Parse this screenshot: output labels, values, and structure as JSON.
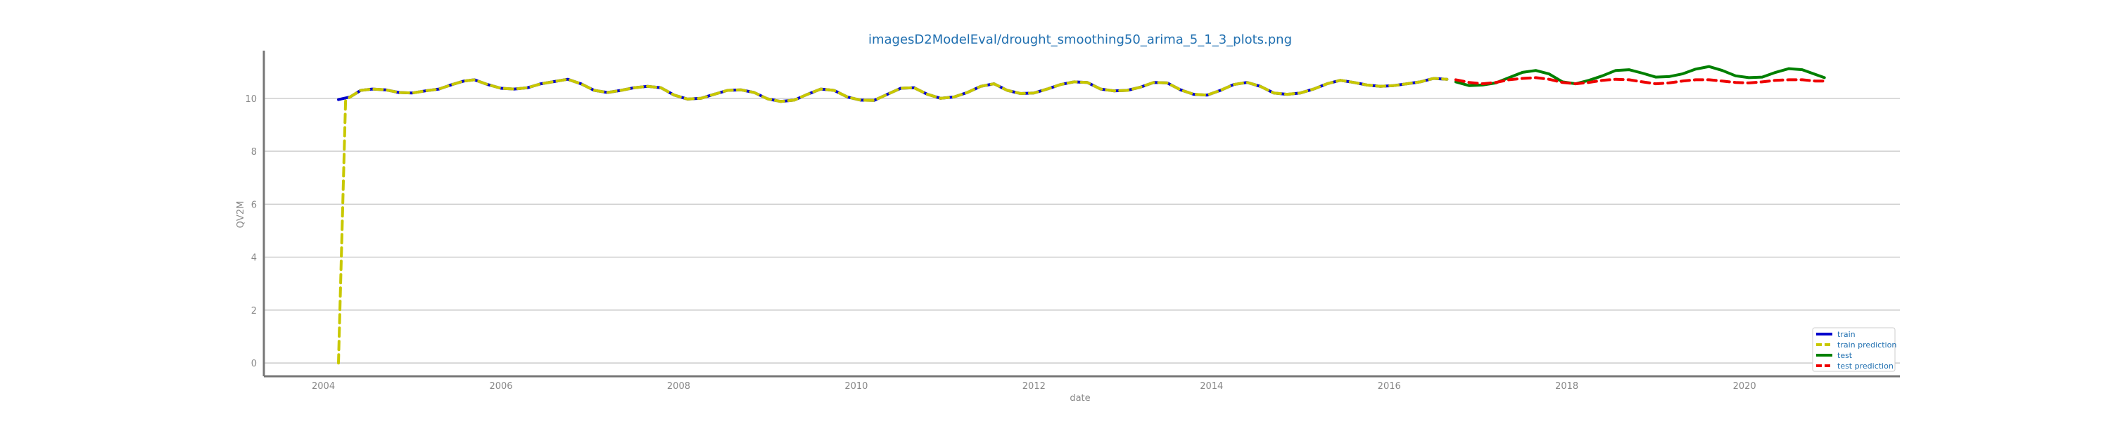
{
  "chart_data": {
    "type": "line",
    "title": "imagesD2ModelEval/drought_smoothing50_arima_5_1_3_plots.png",
    "xlabel": "date",
    "ylabel": "QV2M",
    "xlim": [
      2003.33,
      2021.75
    ],
    "ylim": [
      -0.5,
      11.8
    ],
    "x_ticks": [
      2004,
      2006,
      2008,
      2010,
      2012,
      2014,
      2016,
      2018,
      2020
    ],
    "y_ticks": [
      0,
      2,
      4,
      6,
      8,
      10
    ],
    "grid": "horizontal",
    "legend_position": "lower-right",
    "colors": {
      "train": "#0000cc",
      "train prediction": "#c8c800",
      "test": "#008000",
      "test prediction": "#ee0000",
      "grid": "#cccccc",
      "axis": "#777777"
    },
    "series": [
      {
        "name": "train",
        "style": "solid",
        "x": [
          2004.17,
          2004.3,
          2004.42,
          2004.55,
          2004.7,
          2004.85,
          2005.0,
          2005.15,
          2005.3,
          2005.45,
          2005.58,
          2005.7,
          2005.85,
          2006.0,
          2006.15,
          2006.3,
          2006.45,
          2006.58,
          2006.75,
          2006.9,
          2007.05,
          2007.2,
          2007.35,
          2007.5,
          2007.65,
          2007.8,
          2007.95,
          2008.1,
          2008.25,
          2008.4,
          2008.55,
          2008.7,
          2008.85,
          2009.0,
          2009.15,
          2009.3,
          2009.45,
          2009.6,
          2009.75,
          2009.9,
          2010.05,
          2010.2,
          2010.35,
          2010.5,
          2010.65,
          2010.8,
          2010.95,
          2011.1,
          2011.25,
          2011.4,
          2011.55,
          2011.7,
          2011.85,
          2012.0,
          2012.15,
          2012.3,
          2012.45,
          2012.6,
          2012.75,
          2012.9,
          2013.05,
          2013.2,
          2013.35,
          2013.5,
          2013.65,
          2013.8,
          2013.95,
          2014.1,
          2014.25,
          2014.4,
          2014.55,
          2014.7,
          2014.85,
          2015.0,
          2015.15,
          2015.3,
          2015.45,
          2015.6,
          2015.75,
          2015.9,
          2016.05,
          2016.2,
          2016.35,
          2016.5,
          2016.65
        ],
        "y": [
          9.95,
          10.05,
          10.3,
          10.35,
          10.32,
          10.22,
          10.2,
          10.28,
          10.35,
          10.52,
          10.65,
          10.7,
          10.52,
          10.38,
          10.35,
          10.4,
          10.55,
          10.62,
          10.72,
          10.55,
          10.3,
          10.22,
          10.3,
          10.4,
          10.45,
          10.4,
          10.12,
          9.97,
          10.0,
          10.15,
          10.3,
          10.32,
          10.22,
          9.98,
          9.88,
          9.93,
          10.15,
          10.35,
          10.3,
          10.05,
          9.93,
          9.92,
          10.15,
          10.38,
          10.4,
          10.15,
          10.0,
          10.05,
          10.22,
          10.45,
          10.55,
          10.3,
          10.18,
          10.2,
          10.35,
          10.52,
          10.62,
          10.6,
          10.35,
          10.28,
          10.3,
          10.42,
          10.6,
          10.58,
          10.32,
          10.15,
          10.12,
          10.3,
          10.52,
          10.6,
          10.45,
          10.2,
          10.15,
          10.2,
          10.35,
          10.55,
          10.68,
          10.6,
          10.5,
          10.45,
          10.48,
          10.55,
          10.62,
          10.75,
          10.72
        ]
      },
      {
        "name": "train prediction",
        "style": "dashed",
        "x": [
          2004.17,
          2004.25,
          2004.3,
          2004.42,
          2004.55,
          2004.7,
          2004.85,
          2005.0,
          2005.15,
          2005.3,
          2005.45,
          2005.58,
          2005.7,
          2005.85,
          2006.0,
          2006.15,
          2006.3,
          2006.45,
          2006.58,
          2006.75,
          2006.9,
          2007.05,
          2007.2,
          2007.35,
          2007.5,
          2007.65,
          2007.8,
          2007.95,
          2008.1,
          2008.25,
          2008.4,
          2008.55,
          2008.7,
          2008.85,
          2009.0,
          2009.15,
          2009.3,
          2009.45,
          2009.6,
          2009.75,
          2009.9,
          2010.05,
          2010.2,
          2010.35,
          2010.5,
          2010.65,
          2010.8,
          2010.95,
          2011.1,
          2011.25,
          2011.4,
          2011.55,
          2011.7,
          2011.85,
          2012.0,
          2012.15,
          2012.3,
          2012.45,
          2012.6,
          2012.75,
          2012.9,
          2013.05,
          2013.2,
          2013.35,
          2013.5,
          2013.65,
          2013.8,
          2013.95,
          2014.1,
          2014.25,
          2014.4,
          2014.55,
          2014.7,
          2014.85,
          2015.0,
          2015.15,
          2015.3,
          2015.45,
          2015.6,
          2015.75,
          2015.9,
          2016.05,
          2016.2,
          2016.35,
          2016.5,
          2016.65
        ],
        "y": [
          0.0,
          9.9,
          10.05,
          10.3,
          10.35,
          10.32,
          10.22,
          10.2,
          10.28,
          10.35,
          10.52,
          10.65,
          10.7,
          10.52,
          10.38,
          10.35,
          10.4,
          10.55,
          10.62,
          10.72,
          10.55,
          10.3,
          10.22,
          10.3,
          10.4,
          10.45,
          10.4,
          10.12,
          9.97,
          10.0,
          10.15,
          10.3,
          10.32,
          10.22,
          9.98,
          9.88,
          9.93,
          10.15,
          10.35,
          10.3,
          10.05,
          9.93,
          9.92,
          10.15,
          10.38,
          10.4,
          10.15,
          10.0,
          10.05,
          10.22,
          10.45,
          10.55,
          10.3,
          10.18,
          10.2,
          10.35,
          10.52,
          10.62,
          10.6,
          10.35,
          10.28,
          10.3,
          10.42,
          10.6,
          10.58,
          10.32,
          10.15,
          10.12,
          10.3,
          10.52,
          10.6,
          10.45,
          10.2,
          10.15,
          10.2,
          10.35,
          10.55,
          10.68,
          10.6,
          10.5,
          10.45,
          10.48,
          10.55,
          10.62,
          10.75,
          10.72
        ]
      },
      {
        "name": "test",
        "style": "solid",
        "x": [
          2016.75,
          2016.9,
          2017.05,
          2017.2,
          2017.35,
          2017.5,
          2017.65,
          2017.8,
          2017.95,
          2018.1,
          2018.25,
          2018.4,
          2018.55,
          2018.7,
          2018.85,
          2019.0,
          2019.15,
          2019.3,
          2019.45,
          2019.6,
          2019.75,
          2019.9,
          2020.05,
          2020.2,
          2020.35,
          2020.5,
          2020.65,
          2020.8,
          2020.9
        ],
        "y": [
          10.62,
          10.48,
          10.5,
          10.58,
          10.78,
          10.98,
          11.05,
          10.92,
          10.62,
          10.55,
          10.68,
          10.85,
          11.05,
          11.08,
          10.95,
          10.8,
          10.82,
          10.92,
          11.1,
          11.2,
          11.05,
          10.85,
          10.78,
          10.8,
          10.98,
          11.12,
          11.08,
          10.9,
          10.78
        ]
      },
      {
        "name": "test prediction",
        "style": "dashed",
        "x": [
          2016.75,
          2016.9,
          2017.05,
          2017.2,
          2017.35,
          2017.5,
          2017.65,
          2017.8,
          2017.95,
          2018.1,
          2018.25,
          2018.4,
          2018.55,
          2018.7,
          2018.85,
          2019.0,
          2019.15,
          2019.3,
          2019.45,
          2019.6,
          2019.75,
          2019.9,
          2020.05,
          2020.2,
          2020.35,
          2020.5,
          2020.65,
          2020.8,
          2020.9
        ],
        "y": [
          10.7,
          10.6,
          10.55,
          10.6,
          10.7,
          10.75,
          10.78,
          10.72,
          10.6,
          10.55,
          10.6,
          10.68,
          10.72,
          10.7,
          10.62,
          10.55,
          10.58,
          10.65,
          10.7,
          10.7,
          10.65,
          10.6,
          10.58,
          10.62,
          10.68,
          10.7,
          10.7,
          10.65,
          10.65
        ]
      }
    ]
  }
}
